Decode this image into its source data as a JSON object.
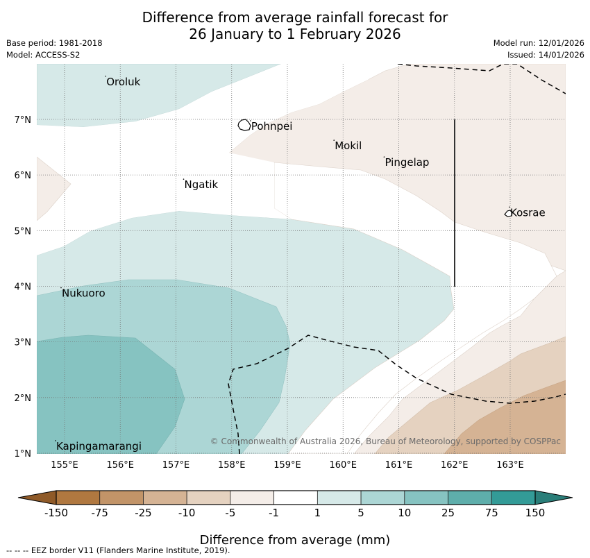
{
  "header": {
    "title_line1": "Difference from average rainfall forecast for",
    "title_line2": "26 January to 1 February 2026",
    "base_period": "Base period: 1981-2018",
    "model": "Model: ACCESS-S2",
    "model_run": "Model run: 12/01/2026",
    "issued": "Issued: 14/01/2026"
  },
  "map": {
    "lon_range": [
      154.5,
      164.0
    ],
    "lat_range": [
      1.0,
      8.0
    ],
    "x_ticks": [
      "155°E",
      "156°E",
      "157°E",
      "158°E",
      "159°E",
      "160°E",
      "161°E",
      "162°E",
      "163°E"
    ],
    "x_tick_values": [
      155,
      156,
      157,
      158,
      159,
      160,
      161,
      162,
      163
    ],
    "y_ticks": [
      "1°N",
      "2°N",
      "3°N",
      "4°N",
      "5°N",
      "6°N",
      "7°N"
    ],
    "y_tick_values": [
      1,
      2,
      3,
      4,
      5,
      6,
      7
    ],
    "places": [
      {
        "name": "Oroluk",
        "lon": 155.75,
        "lat": 7.65
      },
      {
        "name": "Pohnpei",
        "lon": 158.35,
        "lat": 6.85
      },
      {
        "name": "Mokil",
        "lon": 159.85,
        "lat": 6.5
      },
      {
        "name": "Pingelap",
        "lon": 160.75,
        "lat": 6.2
      },
      {
        "name": "Ngatik",
        "lon": 157.15,
        "lat": 5.8
      },
      {
        "name": "Kosrae",
        "lon": 163.0,
        "lat": 5.3
      },
      {
        "name": "Nukuoro",
        "lon": 154.95,
        "lat": 3.85
      },
      {
        "name": "Kapingamarangi",
        "lon": 154.85,
        "lat": 1.1
      }
    ],
    "copyright": "© Commonwealth of Australia 2026, Bureau of Meteorology, supported by COSPPac"
  },
  "colorbar": {
    "label": "Difference from average (mm)",
    "ticks": [
      "-150",
      "-75",
      "-25",
      "-10",
      "-5",
      "-1",
      "1",
      "5",
      "10",
      "25",
      "75",
      "150"
    ],
    "colors": [
      "#8f5a28",
      "#b07840",
      "#c29468",
      "#d5b394",
      "#e5d2c0",
      "#f4ede8",
      "#ffffff",
      "#d6e9e8",
      "#acd6d5",
      "#86c3c1",
      "#5eaeab",
      "#339b97",
      "#2a7e79"
    ]
  },
  "footnote": "--  --  -- EEZ border V11 (Flanders Marine Institute, 2019)."
}
